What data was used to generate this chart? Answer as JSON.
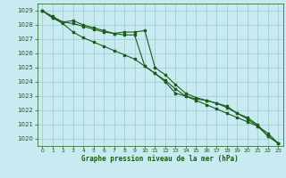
{
  "title": "Graphe pression niveau de la mer (hPa)",
  "background_color": "#c8eaf0",
  "grid_color": "#a8d4d8",
  "line_color": "#1a5c1a",
  "xlim": [
    -0.5,
    23.5
  ],
  "ylim": [
    1019.5,
    1029.5
  ],
  "yticks": [
    1020,
    1021,
    1022,
    1023,
    1024,
    1025,
    1026,
    1027,
    1028,
    1029
  ],
  "xticks": [
    0,
    1,
    2,
    3,
    4,
    5,
    6,
    7,
    8,
    9,
    10,
    11,
    12,
    13,
    14,
    15,
    16,
    17,
    18,
    19,
    20,
    21,
    22,
    23
  ],
  "series1": [
    1029.0,
    1028.6,
    1028.2,
    1028.3,
    1028.0,
    1027.8,
    1027.6,
    1027.4,
    1027.3,
    1027.3,
    1025.1,
    1024.6,
    1024.0,
    1023.2,
    1023.0,
    1022.8,
    1022.7,
    1022.5,
    1022.3,
    1021.8,
    1021.5,
    1021.0,
    1020.2,
    1019.7
  ],
  "series2": [
    1029.0,
    1028.5,
    1028.2,
    1028.1,
    1027.9,
    1027.7,
    1027.5,
    1027.4,
    1027.5,
    1027.5,
    1027.6,
    1025.0,
    1024.5,
    1023.8,
    1023.2,
    1022.9,
    1022.7,
    1022.5,
    1022.2,
    1021.8,
    1021.4,
    1020.9,
    1020.2,
    1019.7
  ],
  "series3": [
    1029.0,
    1028.5,
    1028.1,
    1027.5,
    1027.1,
    1026.8,
    1026.5,
    1026.2,
    1025.9,
    1025.6,
    1025.1,
    1024.6,
    1024.1,
    1023.5,
    1023.0,
    1022.7,
    1022.4,
    1022.1,
    1021.8,
    1021.5,
    1021.2,
    1020.9,
    1020.4,
    1019.7
  ]
}
